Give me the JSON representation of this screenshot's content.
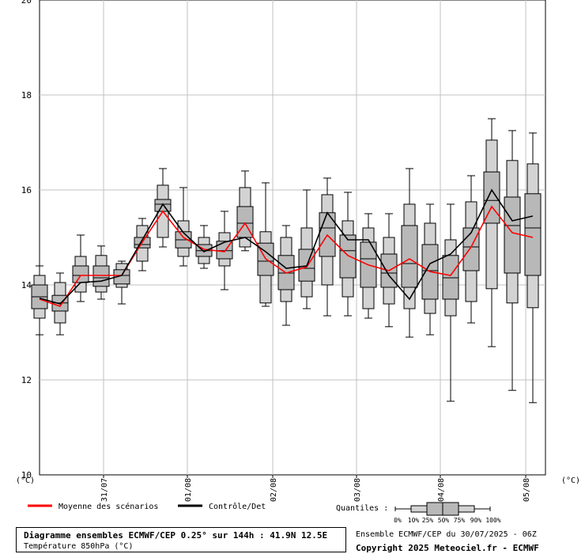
{
  "chart_data": {
    "type": "boxplot",
    "y_unit_label": "(°C)",
    "ylim": [
      10,
      20
    ],
    "y_ticks": [
      10,
      12,
      14,
      16,
      18,
      20
    ],
    "x_ticks": [
      "31/07",
      "01/08",
      "02/08",
      "03/08",
      "04/08",
      "05/08"
    ],
    "grid": true,
    "legend": {
      "mean_label": "Moyenne des scénarios",
      "control_label": "Contrôle/Det",
      "mean_color": "#ff0000",
      "control_color": "#000000",
      "quantiles_label": "Quantiles :",
      "quantile_ticks": [
        "0%",
        "10%",
        "25%",
        "50%",
        "75%",
        "90%",
        "100%"
      ]
    },
    "steps": [
      {
        "min": 12.95,
        "p10": 13.3,
        "p25": 13.5,
        "median": 13.75,
        "p75": 14.0,
        "p90": 14.2,
        "max": 14.4,
        "mean": 13.7,
        "control": 13.72
      },
      {
        "min": 12.95,
        "p10": 13.2,
        "p25": 13.45,
        "median": 13.62,
        "p75": 13.78,
        "p90": 14.05,
        "max": 14.25,
        "mean": 13.55,
        "control": 13.6
      },
      {
        "min": 13.65,
        "p10": 13.85,
        "p25": 14.05,
        "median": 14.2,
        "p75": 14.4,
        "p90": 14.6,
        "max": 15.05,
        "mean": 14.2,
        "control": 14.05
      },
      {
        "min": 13.7,
        "p10": 13.85,
        "p25": 13.97,
        "median": 14.15,
        "p75": 14.4,
        "p90": 14.62,
        "max": 14.82,
        "mean": 14.2,
        "control": 14.08
      },
      {
        "min": 13.6,
        "p10": 13.95,
        "p25": 14.02,
        "median": 14.2,
        "p75": 14.32,
        "p90": 14.45,
        "max": 14.5,
        "mean": 14.2,
        "control": 14.2
      },
      {
        "min": 14.3,
        "p10": 14.5,
        "p25": 14.78,
        "median": 14.85,
        "p75": 15.0,
        "p90": 15.25,
        "max": 15.4,
        "mean": 14.9,
        "control": 14.95
      },
      {
        "min": 14.8,
        "p10": 15.0,
        "p25": 15.55,
        "median": 15.7,
        "p75": 15.8,
        "p90": 16.1,
        "max": 16.45,
        "mean": 15.55,
        "control": 15.7
      },
      {
        "min": 14.4,
        "p10": 14.6,
        "p25": 14.78,
        "median": 14.95,
        "p75": 15.12,
        "p90": 15.35,
        "max": 16.05,
        "mean": 15.0,
        "control": 15.1
      },
      {
        "min": 14.35,
        "p10": 14.45,
        "p25": 14.6,
        "median": 14.72,
        "p75": 14.85,
        "p90": 15.0,
        "max": 15.25,
        "mean": 14.75,
        "control": 14.7
      },
      {
        "min": 13.9,
        "p10": 14.4,
        "p25": 14.55,
        "median": 14.72,
        "p75": 14.92,
        "p90": 15.1,
        "max": 15.55,
        "mean": 14.7,
        "control": 14.9
      },
      {
        "min": 14.72,
        "p10": 14.8,
        "p25": 15.0,
        "median": 15.3,
        "p75": 15.65,
        "p90": 16.05,
        "max": 16.4,
        "mean": 15.3,
        "control": 15.0
      },
      {
        "min": 13.55,
        "p10": 13.62,
        "p25": 14.2,
        "median": 14.5,
        "p75": 14.88,
        "p90": 15.12,
        "max": 16.15,
        "mean": 14.55,
        "control": 14.7
      },
      {
        "min": 13.15,
        "p10": 13.65,
        "p25": 13.9,
        "median": 14.25,
        "p75": 14.62,
        "p90": 15.0,
        "max": 15.25,
        "mean": 14.25,
        "control": 14.35
      },
      {
        "min": 13.5,
        "p10": 13.75,
        "p25": 14.08,
        "median": 14.35,
        "p75": 14.75,
        "p90": 15.2,
        "max": 16.0,
        "mean": 14.38,
        "control": 14.4
      },
      {
        "min": 13.35,
        "p10": 14.0,
        "p25": 14.6,
        "median": 15.2,
        "p75": 15.52,
        "p90": 15.9,
        "max": 16.25,
        "mean": 15.05,
        "control": 15.52
      },
      {
        "min": 13.35,
        "p10": 13.75,
        "p25": 14.15,
        "median": 14.72,
        "p75": 15.05,
        "p90": 15.35,
        "max": 15.95,
        "mean": 14.62,
        "control": 14.95
      },
      {
        "min": 13.3,
        "p10": 13.5,
        "p25": 13.95,
        "median": 14.55,
        "p75": 14.9,
        "p90": 15.2,
        "max": 15.5,
        "mean": 14.42,
        "control": 14.95
      },
      {
        "min": 13.12,
        "p10": 13.6,
        "p25": 13.95,
        "median": 14.25,
        "p75": 14.65,
        "p90": 15.0,
        "max": 15.5,
        "mean": 14.3,
        "control": 14.2
      },
      {
        "min": 12.9,
        "p10": 13.5,
        "p25": 13.95,
        "median": 14.45,
        "p75": 15.25,
        "p90": 15.7,
        "max": 16.45,
        "mean": 14.55,
        "control": 13.7
      },
      {
        "min": 12.95,
        "p10": 13.4,
        "p25": 13.7,
        "median": 14.3,
        "p75": 14.85,
        "p90": 15.3,
        "max": 15.7,
        "mean": 14.28,
        "control": 14.45
      },
      {
        "min": 11.55,
        "p10": 13.35,
        "p25": 13.7,
        "median": 14.15,
        "p75": 14.62,
        "p90": 14.95,
        "max": 15.7,
        "mean": 14.2,
        "control": 14.65
      },
      {
        "min": 13.2,
        "p10": 13.65,
        "p25": 14.3,
        "median": 14.8,
        "p75": 15.2,
        "p90": 15.75,
        "max": 16.3,
        "mean": 14.8,
        "control": 15.1
      },
      {
        "min": 12.7,
        "p10": 13.92,
        "p25": 15.3,
        "median": 15.78,
        "p75": 16.38,
        "p90": 17.05,
        "max": 17.5,
        "mean": 15.65,
        "control": 16.0
      },
      {
        "min": 11.78,
        "p10": 13.62,
        "p25": 14.25,
        "median": 15.25,
        "p75": 15.85,
        "p90": 16.62,
        "max": 17.25,
        "mean": 15.1,
        "control": 15.35
      },
      {
        "min": 11.52,
        "p10": 13.52,
        "p25": 14.2,
        "median": 15.2,
        "p75": 15.92,
        "p90": 16.55,
        "max": 17.2,
        "mean": 15.0,
        "control": 15.45
      }
    ]
  },
  "footer": {
    "title": "Diagramme ensembles ECMWF/CEP 0.25° sur 144h : 41.9N 12.5E",
    "variable": "Température 850hPa (°C)",
    "run": "Ensemble ECMWF/CEP du 30/07/2025 - 06Z",
    "copyright": "Copyright 2025 Meteociel.fr - ECMWF"
  }
}
